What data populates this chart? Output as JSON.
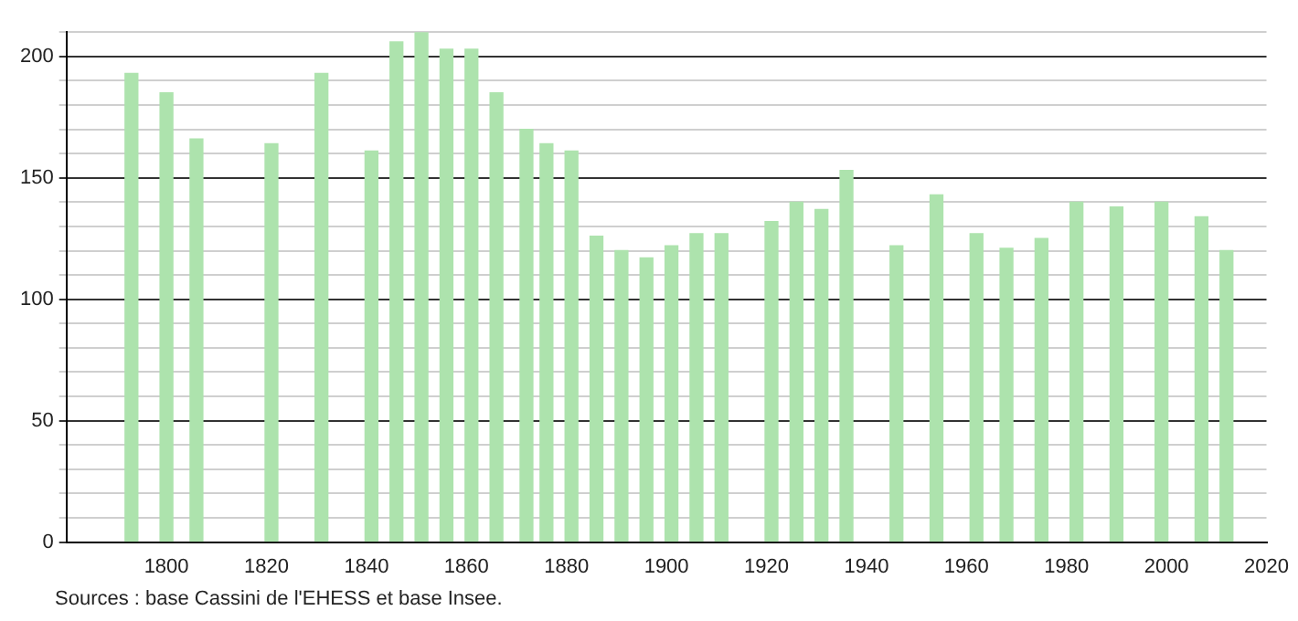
{
  "chart_data": {
    "type": "bar",
    "x": [
      1793,
      1800,
      1806,
      1821,
      1831,
      1841,
      1846,
      1851,
      1856,
      1861,
      1866,
      1872,
      1876,
      1881,
      1886,
      1891,
      1896,
      1901,
      1906,
      1911,
      1921,
      1926,
      1931,
      1936,
      1946,
      1954,
      1962,
      1968,
      1975,
      1982,
      1990,
      1999,
      2007,
      2012
    ],
    "values": [
      193,
      185,
      166,
      164,
      193,
      161,
      206,
      210,
      203,
      203,
      185,
      170,
      164,
      161,
      126,
      120,
      117,
      122,
      127,
      127,
      132,
      140,
      137,
      153,
      122,
      143,
      127,
      121,
      125,
      140,
      138,
      140,
      134,
      120
    ],
    "color": "#ade3ad",
    "xlim": [
      1780,
      2020
    ],
    "xticks": [
      1800,
      1820,
      1840,
      1860,
      1880,
      1900,
      1920,
      1940,
      1960,
      1980,
      2000,
      2020
    ],
    "ylim": [
      0,
      210
    ],
    "yticks": [
      0,
      {
        "value": 10,
        "label": null
      },
      {
        "value": 20,
        "label": null
      },
      {
        "value": 30,
        "label": null
      },
      {
        "value": 40,
        "label": null
      },
      50,
      {
        "value": 60,
        "label": null
      },
      {
        "value": 70,
        "label": null
      },
      {
        "value": 80,
        "label": null
      },
      {
        "value": 90,
        "label": null
      },
      100,
      {
        "value": 110,
        "label": null
      },
      {
        "value": 120,
        "label": null
      },
      {
        "value": 130,
        "label": null
      },
      {
        "value": 140,
        "label": null
      },
      150,
      {
        "value": 160,
        "label": null
      },
      {
        "value": 170,
        "label": null
      },
      {
        "value": 180,
        "label": null
      },
      {
        "value": 190,
        "label": null
      },
      200,
      {
        "value": 210,
        "label": null
      }
    ],
    "grid": "y",
    "legend": false,
    "annotations": [
      "Sources : base Cassini de l'EHESS et base Insee."
    ]
  }
}
